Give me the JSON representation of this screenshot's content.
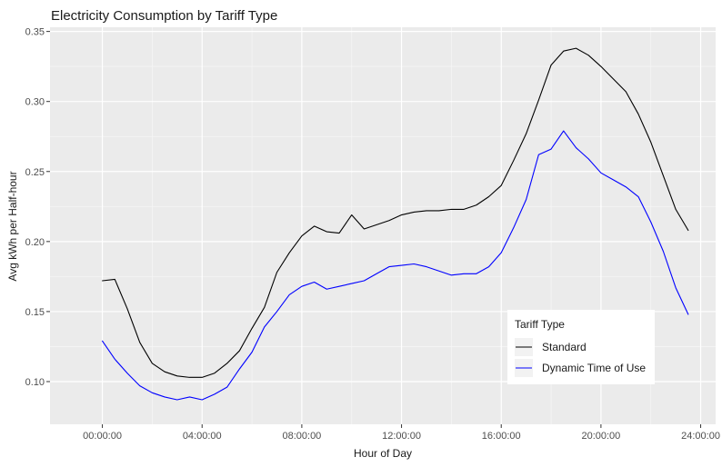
{
  "chart_data": {
    "type": "line",
    "title": "Electricity Consumption by Tariff Type",
    "xlabel": "Hour of Day",
    "ylabel": "Avg kWh per Half-hour",
    "xlim": [
      -2.1,
      24.6
    ],
    "ylim": [
      0.0695,
      0.353
    ],
    "x_ticks": [
      {
        "value": 0,
        "label": "00:00:00"
      },
      {
        "value": 4,
        "label": "04:00:00"
      },
      {
        "value": 8,
        "label": "08:00:00"
      },
      {
        "value": 12,
        "label": "12:00:00"
      },
      {
        "value": 16,
        "label": "16:00:00"
      },
      {
        "value": 20,
        "label": "20:00:00"
      },
      {
        "value": 24,
        "label": "24:00:00"
      }
    ],
    "y_ticks": [
      {
        "value": 0.1,
        "label": "0.10"
      },
      {
        "value": 0.15,
        "label": "0.15"
      },
      {
        "value": 0.2,
        "label": "0.20"
      },
      {
        "value": 0.25,
        "label": "0.25"
      },
      {
        "value": 0.3,
        "label": "0.30"
      },
      {
        "value": 0.35,
        "label": "0.35"
      }
    ],
    "grid": true,
    "legend": {
      "title": "Tariff Type",
      "position": "bottom-right"
    },
    "x": [
      0,
      0.5,
      1,
      1.5,
      2,
      2.5,
      3,
      3.5,
      4,
      4.5,
      5,
      5.5,
      6,
      6.5,
      7,
      7.5,
      8,
      8.5,
      9,
      9.5,
      10,
      10.5,
      11,
      11.5,
      12,
      12.5,
      13,
      13.5,
      14,
      14.5,
      15,
      15.5,
      16,
      16.5,
      17,
      17.5,
      18,
      18.5,
      19,
      19.5,
      20,
      20.5,
      21,
      21.5,
      22,
      22.5,
      23,
      23.5
    ],
    "series": [
      {
        "name": "Standard",
        "color": "#000000",
        "values": [
          0.172,
          0.173,
          0.152,
          0.128,
          0.113,
          0.107,
          0.104,
          0.103,
          0.103,
          0.106,
          0.113,
          0.122,
          0.138,
          0.153,
          0.178,
          0.192,
          0.204,
          0.211,
          0.207,
          0.206,
          0.219,
          0.209,
          0.212,
          0.215,
          0.219,
          0.221,
          0.222,
          0.222,
          0.223,
          0.223,
          0.226,
          0.232,
          0.24,
          0.258,
          0.277,
          0.301,
          0.326,
          0.336,
          0.338,
          0.333,
          0.325,
          0.316,
          0.307,
          0.291,
          0.271,
          0.247,
          0.223,
          0.208
        ]
      },
      {
        "name": "Dynamic Time of Use",
        "color": "#0000ff",
        "values": [
          0.129,
          0.116,
          0.106,
          0.097,
          0.092,
          0.089,
          0.087,
          0.089,
          0.087,
          0.091,
          0.096,
          0.109,
          0.121,
          0.139,
          0.15,
          0.162,
          0.168,
          0.171,
          0.166,
          0.168,
          0.17,
          0.172,
          0.177,
          0.182,
          0.183,
          0.184,
          0.182,
          0.179,
          0.176,
          0.177,
          0.177,
          0.182,
          0.192,
          0.21,
          0.23,
          0.262,
          0.266,
          0.279,
          0.267,
          0.259,
          0.249,
          0.244,
          0.239,
          0.232,
          0.214,
          0.193,
          0.167,
          0.148
        ]
      }
    ]
  }
}
